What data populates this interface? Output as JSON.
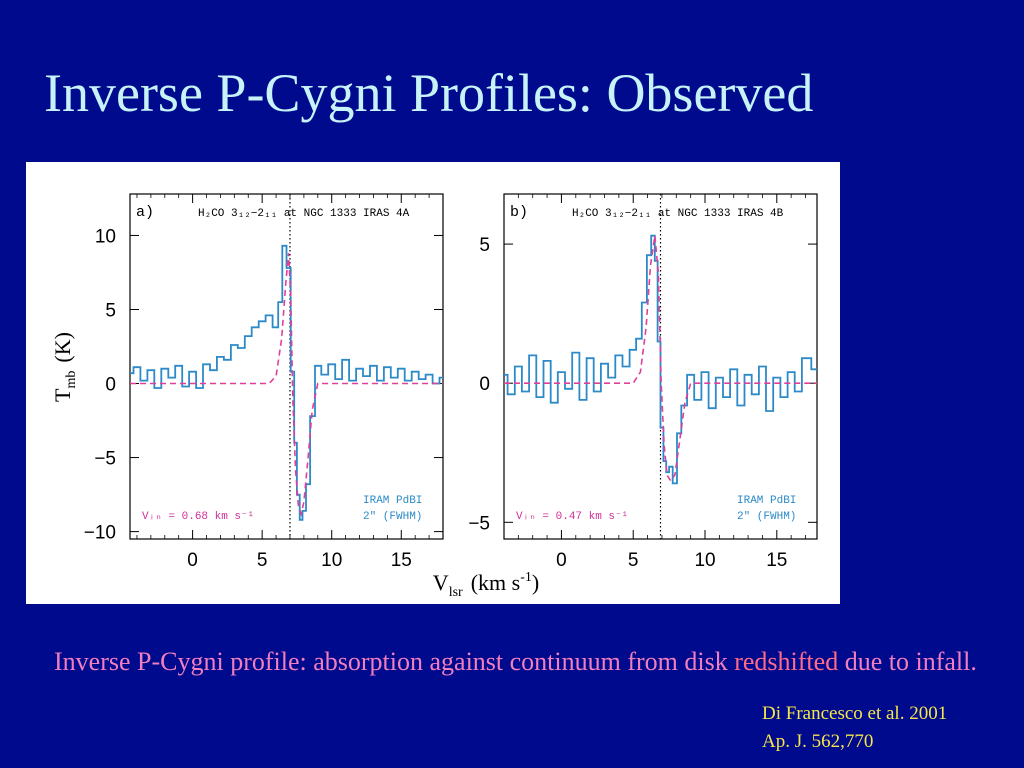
{
  "slide": {
    "title": "Inverse P-Cygni Profiles: Observed",
    "background_color": "#000a8c",
    "title_color": "#c6f2f8"
  },
  "caption": {
    "part1": "Inverse P-Cygni profile: absorption against continuum from disk ",
    "highlight": "redshifted",
    "part2": " due to infall.",
    "color": "#f27ec0",
    "highlight_color": "#ff6a8a"
  },
  "citation": {
    "line1": "Di Francesco et al. 2001",
    "line2": "Ap. J. 562,770",
    "color": "#f5e64a"
  },
  "figure": {
    "ylabel": "T",
    "ylabel_sub": "mb",
    "ylabel_unit": "(K)",
    "xlabel": "V",
    "xlabel_sub": "lsr",
    "xlabel_unit": "(km s",
    "xlabel_exp": "-1",
    "xlabel_close": ")"
  },
  "chart_data": [
    {
      "type": "line",
      "panel_label": "a)",
      "header": "H₂CO 3₁₂−2₁₁ at NGC 1333 IRAS 4A",
      "xlim": [
        -4.5,
        18
      ],
      "ylim": [
        -10.5,
        12.8
      ],
      "x_ticks": [
        0,
        5,
        10,
        15
      ],
      "y_ticks": [
        10,
        5,
        0,
        -5,
        -10
      ],
      "y_tick_labels": [
        "10",
        "5",
        "0",
        "−5",
        "−10"
      ],
      "vline_x": 7.0,
      "annotation_left": "Vᵢₙ = 0.68 km s⁻¹",
      "annotation_right": [
        "IRAM PdBI",
        "2\" (FWHM)"
      ],
      "series": [
        {
          "style": "observed",
          "color": "#2c8ac8",
          "x": [
            -4.5,
            -4,
            -3.5,
            -3,
            -2.5,
            -2,
            -1.5,
            -1,
            -0.5,
            0,
            0.5,
            1,
            1.5,
            2,
            2.5,
            3,
            3.5,
            4,
            4.5,
            5,
            5.5,
            6,
            6.3,
            6.6,
            6.9,
            7.2,
            7.4,
            7.6,
            7.8,
            8.0,
            8.3,
            8.6,
            9,
            9.5,
            10,
            10.5,
            11,
            11.5,
            12,
            12.5,
            13,
            13.5,
            14,
            14.5,
            15,
            15.5,
            16,
            16.5,
            17,
            17.5,
            18
          ],
          "y": [
            0.7,
            1.1,
            0.2,
            0.9,
            -0.3,
            1.0,
            0.4,
            1.2,
            -0.2,
            0.8,
            -0.3,
            1.3,
            0.9,
            1.8,
            1.6,
            2.6,
            2.4,
            3.2,
            3.8,
            4.2,
            4.6,
            3.8,
            5.5,
            9.3,
            7.8,
            0.8,
            -4.0,
            -7.5,
            -9.2,
            -8.6,
            -6.8,
            -2.2,
            1.2,
            0.6,
            1.3,
            0.3,
            1.6,
            0.2,
            1.0,
            0.5,
            1.2,
            0.2,
            1.1,
            0.4,
            1.0,
            0.2,
            0.8,
            0.3,
            0.6,
            0.0,
            0.4
          ]
        },
        {
          "style": "model",
          "color": "#e0409a",
          "x": [
            -4.5,
            -2,
            0,
            2,
            4,
            5.5,
            6.0,
            6.4,
            6.7,
            6.9,
            7.05,
            7.2,
            7.4,
            7.6,
            7.8,
            8.0,
            8.3,
            8.6,
            9.0,
            10,
            12,
            15,
            18
          ],
          "y": [
            0,
            0,
            0,
            0,
            0,
            0,
            0.5,
            3.0,
            6.8,
            8.8,
            6.0,
            -1.0,
            -5.8,
            -8.2,
            -8.8,
            -8.0,
            -5.0,
            -1.8,
            0,
            0,
            0,
            0,
            0
          ]
        }
      ]
    },
    {
      "type": "line",
      "panel_label": "b)",
      "header": "H₂CO 3₁₂−2₁₁ at NGC 1333 IRAS 4B",
      "xlim": [
        -4,
        17.8
      ],
      "ylim": [
        -5.6,
        6.8
      ],
      "x_ticks": [
        0,
        5,
        10,
        15
      ],
      "y_ticks": [
        5,
        0,
        -5
      ],
      "y_tick_labels": [
        "5",
        "0",
        "−5"
      ],
      "vline_x": 6.9,
      "annotation_left": "Vᵢₙ = 0.47 km s⁻¹",
      "annotation_right": [
        "IRAM PdBI",
        "2\" (FWHM)"
      ],
      "series": [
        {
          "style": "observed",
          "color": "#2c8ac8",
          "x": [
            -4,
            -3.5,
            -3,
            -2.5,
            -2,
            -1.5,
            -1,
            -0.5,
            0,
            0.5,
            1,
            1.5,
            2,
            2.5,
            3,
            3.5,
            4,
            4.5,
            5,
            5.4,
            5.8,
            6.1,
            6.4,
            6.6,
            6.8,
            7.0,
            7.2,
            7.4,
            7.6,
            7.9,
            8.2,
            8.5,
            9,
            9.5,
            10,
            10.5,
            11,
            11.5,
            12,
            12.5,
            13,
            13.5,
            14,
            14.5,
            15,
            15.5,
            16,
            16.5,
            17,
            17.8
          ],
          "y": [
            0.3,
            -0.4,
            0.6,
            -0.3,
            1.0,
            -0.5,
            0.8,
            -0.7,
            0.4,
            -0.2,
            1.1,
            -0.6,
            0.9,
            -0.3,
            0.7,
            0.2,
            1.0,
            0.6,
            1.2,
            1.6,
            2.9,
            4.6,
            5.3,
            4.4,
            1.5,
            -1.6,
            -2.8,
            -3.2,
            -3.0,
            -3.6,
            -1.8,
            -0.8,
            0.3,
            -0.6,
            0.4,
            -0.9,
            0.2,
            -0.5,
            0.5,
            -0.8,
            0.3,
            -0.4,
            0.6,
            -1.0,
            0.2,
            -0.5,
            0.4,
            -0.3,
            0.9,
            0.5
          ]
        },
        {
          "style": "model",
          "color": "#e0409a",
          "x": [
            -4,
            -1,
            2,
            4,
            5,
            5.5,
            5.9,
            6.2,
            6.5,
            6.75,
            6.95,
            7.15,
            7.35,
            7.6,
            7.9,
            8.2,
            8.6,
            9.0,
            10,
            13,
            17.8
          ],
          "y": [
            0,
            0,
            0,
            0,
            0,
            0.4,
            2.0,
            4.2,
            5.3,
            4.0,
            0.0,
            -2.2,
            -3.3,
            -3.5,
            -3.3,
            -2.2,
            -0.7,
            0,
            0,
            0,
            0
          ]
        }
      ]
    }
  ]
}
